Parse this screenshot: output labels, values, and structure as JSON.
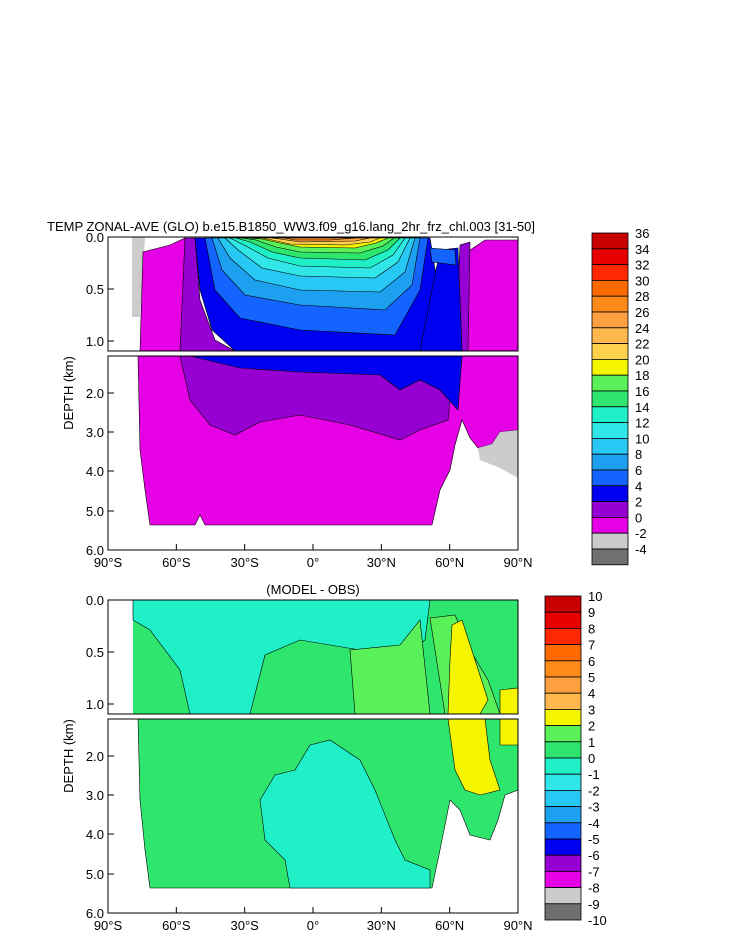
{
  "chart_data": [
    {
      "type": "heatmap",
      "title": "TEMP ZONAL-AVE (GLO) b.e15.B1850_WW3.f09_g16.lang_2hr_frz_chl.003 [31-50]",
      "ylabel": "DEPTH (km)",
      "xlabel": "",
      "xlim": [
        -90,
        90
      ],
      "ylim_km": [
        0,
        6.0
      ],
      "x_ticks": [
        "90°S",
        "60°S",
        "30°S",
        "0°",
        "30°N",
        "60°N",
        "90°N"
      ],
      "y_ticks_upper": [
        "0.0",
        "0.5",
        "1.0"
      ],
      "y_ticks_lower": [
        "2.0",
        "3.0",
        "4.0",
        "5.0",
        "6.0"
      ],
      "colorbar_levels": [
        "36",
        "34",
        "32",
        "30",
        "28",
        "26",
        "24",
        "22",
        "20",
        "18",
        "16",
        "14",
        "12",
        "10",
        "8",
        "6",
        "4",
        "2",
        "0",
        "-2",
        "-4"
      ],
      "colorbar_colors": [
        "#c80000",
        "#e60000",
        "#ff2800",
        "#ff6a00",
        "#ff8c1a",
        "#ffa040",
        "#ffb84d",
        "#ffd24d",
        "#f5f500",
        "#5af05a",
        "#2ee66e",
        "#20f0c8",
        "#30e6e6",
        "#28c8f5",
        "#1ea0f0",
        "#1464ff",
        "#0000f0",
        "#9600d2",
        "#e600e6",
        "#cccccc",
        "#707070"
      ]
    },
    {
      "type": "heatmap",
      "title": "(MODEL - OBS)",
      "ylabel": "DEPTH (km)",
      "xlabel": "",
      "xlim": [
        -90,
        90
      ],
      "ylim_km": [
        0,
        6.0
      ],
      "x_ticks": [
        "90°S",
        "60°S",
        "30°S",
        "0°",
        "30°N",
        "60°N",
        "90°N"
      ],
      "y_ticks_upper": [
        "0.0",
        "0.5",
        "1.0"
      ],
      "y_ticks_lower": [
        "2.0",
        "3.0",
        "4.0",
        "5.0",
        "6.0"
      ],
      "colorbar_levels": [
        "10",
        "9",
        "8",
        "7",
        "6",
        "5",
        "4",
        "3",
        "2",
        "1",
        "0",
        "-1",
        "-2",
        "-3",
        "-4",
        "-5",
        "-6",
        "-7",
        "-8",
        "-9",
        "-10"
      ],
      "colorbar_colors": [
        "#c80000",
        "#e60000",
        "#ff2800",
        "#ff6a00",
        "#ff8c1a",
        "#ffa040",
        "#ffb84d",
        "#f5f500",
        "#5af05a",
        "#2ee66e",
        "#20f0c8",
        "#30e6e6",
        "#28c8f5",
        "#1ea0f0",
        "#1464ff",
        "#0000f0",
        "#9600d2",
        "#e600e6",
        "#cccccc",
        "#707070"
      ]
    }
  ]
}
